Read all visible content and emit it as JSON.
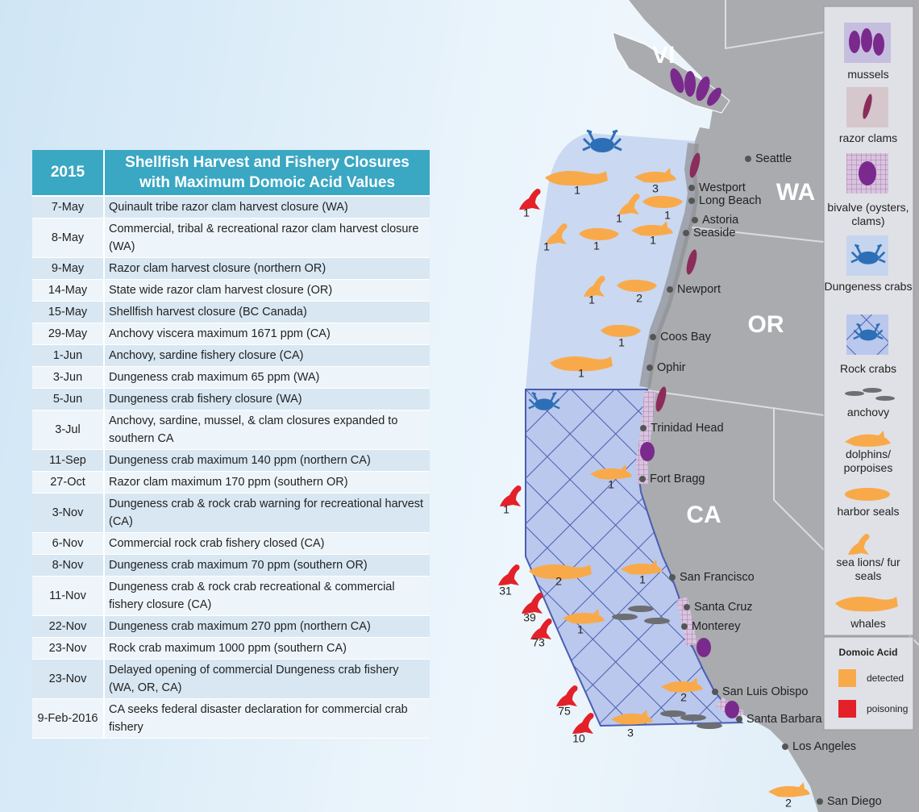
{
  "table": {
    "header": [
      "2015",
      "Shellfish Harvest and Fishery Closures with Maximum Domoic Acid Values"
    ],
    "rows": [
      [
        "7-May",
        "Quinault tribe razor clam harvest closure (WA)"
      ],
      [
        "8-May",
        "Commercial, tribal & recreational razor clam harvest closure (WA)"
      ],
      [
        "9-May",
        "Razor clam harvest closure (northern OR)"
      ],
      [
        "14-May",
        "State wide razor clam harvest closure (OR)"
      ],
      [
        "15-May",
        "Shellfish harvest closure (BC Canada)"
      ],
      [
        "29-May",
        "Anchovy viscera maximum 1671 ppm (CA)"
      ],
      [
        "1-Jun",
        "Anchovy, sardine fishery closure (CA)"
      ],
      [
        "3-Jun",
        "Dungeness crab maximum 65 ppm (WA)"
      ],
      [
        "5-Jun",
        "Dungeness crab fishery closure (WA)"
      ],
      [
        "3-Jul",
        "Anchovy, sardine, mussel, & clam closures expanded to southern CA"
      ],
      [
        "11-Sep",
        "Dungeness crab maximum 140 ppm (northern CA)"
      ],
      [
        "27-Oct",
        "Razor clam maximum 170 ppm (southern OR)"
      ],
      [
        "3-Nov",
        "Dungeness crab & rock crab warning for recreational harvest (CA)"
      ],
      [
        "6-Nov",
        "Commercial rock crab fishery closed (CA)"
      ],
      [
        "8-Nov",
        "Dungeness crab maximum 70 ppm (southern OR)"
      ],
      [
        "11-Nov",
        "Dungeness crab & rock crab recreational & commercial fishery closure (CA)"
      ],
      [
        "22-Nov",
        "Dungeness crab maximum 270 ppm (northern CA)"
      ],
      [
        "23-Nov",
        "Rock crab maximum 1000 ppm (southern CA)"
      ],
      [
        "23-Nov",
        "Delayed opening of commercial Dungeness crab fishery (WA, OR, CA)"
      ],
      [
        "9-Feb-2016",
        "CA seeks federal disaster declaration for commercial crab fishery"
      ]
    ]
  },
  "map": {
    "regions": [
      "VI",
      "WA",
      "OR",
      "CA"
    ],
    "cities": [
      "Seattle",
      "Westport",
      "Long Beach",
      "Astoria",
      "Seaside",
      "Newport",
      "Coos Bay",
      "Ophir",
      "Trinidad Head",
      "Fort Bragg",
      "San Francisco",
      "Santa Cruz",
      "Monterey",
      "San Luis Obispo",
      "Santa Barbara",
      "Los Angeles",
      "San Diego"
    ],
    "counts": [
      1,
      1,
      3,
      1,
      1,
      1,
      1,
      1,
      1,
      2,
      1,
      1,
      1,
      1,
      2,
      1,
      31,
      39,
      73,
      1,
      2,
      75,
      10,
      3,
      2
    ]
  },
  "legend": {
    "items": [
      "mussels",
      "razor clams",
      "bivalve (oysters, clams)",
      "Dungeness crabs",
      "Rock crabs",
      "anchovy",
      "dolphins/ porpoises",
      "harbor seals",
      "sea lions/ fur seals",
      "whales"
    ],
    "domoic_title": "Domoic Acid",
    "domoic_items": [
      "detected",
      "poisoning"
    ]
  }
}
